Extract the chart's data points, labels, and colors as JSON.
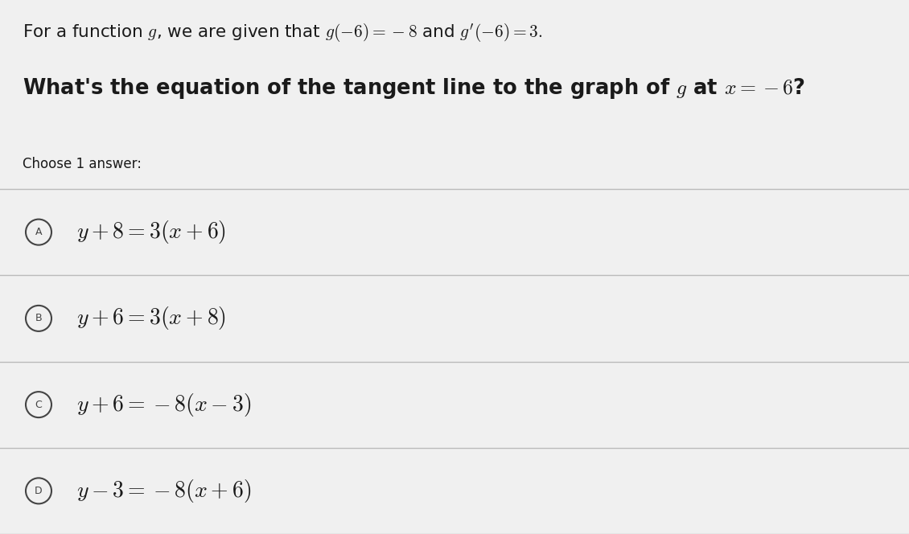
{
  "background_color": "#f0f0f0",
  "title_line1_plain": "For a function ",
  "title_line1_math": "$g(-6) = -8$",
  "title_line2": "What’s the equation of the tangent line to the graph of $g$ at $x=-6$?",
  "choose_label": "Choose 1 answer:",
  "options": [
    {
      "label": "A",
      "text": "$y+8=3(x+6)$"
    },
    {
      "label": "B",
      "text": "$y+6=3(x+8)$"
    },
    {
      "label": "C",
      "text": "$y+6=-8(x-3)$"
    },
    {
      "label": "D",
      "text": "$y-3=-8(x+6)$"
    }
  ],
  "text_color": "#1a1a1a",
  "line_color": "#bbbbbb",
  "circle_edge_color": "#444444",
  "circle_fill": false,
  "bg_top": "#ececec",
  "bg_options": "#f2f2f2",
  "title1_fontsize": 15.5,
  "title2_fontsize": 18.5,
  "choose_fontsize": 12,
  "option_fontsize": 20,
  "label_fontsize": 9
}
